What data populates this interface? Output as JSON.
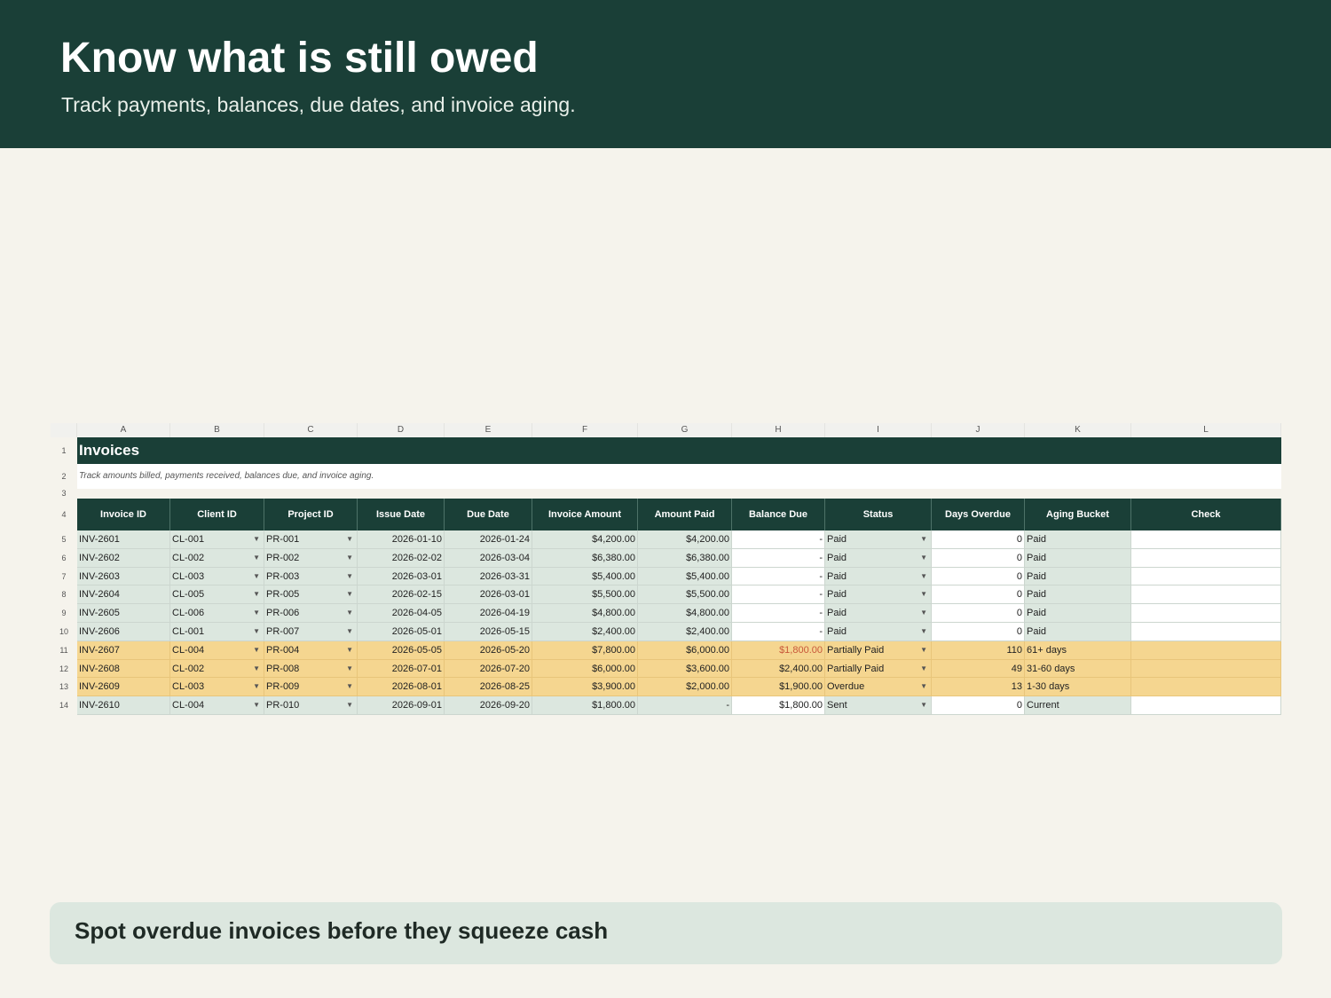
{
  "hero": {
    "title": "Know what is still owed",
    "subtitle": "Track payments, balances, due dates, and invoice aging."
  },
  "sheet": {
    "column_letters": [
      "A",
      "B",
      "C",
      "D",
      "E",
      "F",
      "G",
      "H",
      "I",
      "J",
      "K",
      "L"
    ],
    "row_numbers": [
      "1",
      "2",
      "3",
      "4",
      "5",
      "6",
      "7",
      "8",
      "9",
      "10",
      "11",
      "12",
      "13",
      "14"
    ],
    "title": "Invoices",
    "subtitle": "Track amounts billed, payments received, balances due, and invoice aging.",
    "headers": [
      "Invoice ID",
      "Client ID",
      "Project ID",
      "Issue Date",
      "Due Date",
      "Invoice Amount",
      "Amount Paid",
      "Balance Due",
      "Status",
      "Days Overdue",
      "Aging Bucket",
      "Check"
    ],
    "rows": [
      {
        "invoice": "INV-2601",
        "client": "CL-001",
        "project": "PR-001",
        "issue": "2026-01-10",
        "due": "2026-01-24",
        "amount": "$4,200.00",
        "paid": "$4,200.00",
        "balance": "-",
        "status": "Paid",
        "days": "0",
        "aging": "Paid",
        "check": "",
        "highlight": false
      },
      {
        "invoice": "INV-2602",
        "client": "CL-002",
        "project": "PR-002",
        "issue": "2026-02-02",
        "due": "2026-03-04",
        "amount": "$6,380.00",
        "paid": "$6,380.00",
        "balance": "-",
        "status": "Paid",
        "days": "0",
        "aging": "Paid",
        "check": "",
        "highlight": false
      },
      {
        "invoice": "INV-2603",
        "client": "CL-003",
        "project": "PR-003",
        "issue": "2026-03-01",
        "due": "2026-03-31",
        "amount": "$5,400.00",
        "paid": "$5,400.00",
        "balance": "-",
        "status": "Paid",
        "days": "0",
        "aging": "Paid",
        "check": "",
        "highlight": false
      },
      {
        "invoice": "INV-2604",
        "client": "CL-005",
        "project": "PR-005",
        "issue": "2026-02-15",
        "due": "2026-03-01",
        "amount": "$5,500.00",
        "paid": "$5,500.00",
        "balance": "-",
        "status": "Paid",
        "days": "0",
        "aging": "Paid",
        "check": "",
        "highlight": false
      },
      {
        "invoice": "INV-2605",
        "client": "CL-006",
        "project": "PR-006",
        "issue": "2026-04-05",
        "due": "2026-04-19",
        "amount": "$4,800.00",
        "paid": "$4,800.00",
        "balance": "-",
        "status": "Paid",
        "days": "0",
        "aging": "Paid",
        "check": "",
        "highlight": false
      },
      {
        "invoice": "INV-2606",
        "client": "CL-001",
        "project": "PR-007",
        "issue": "2026-05-01",
        "due": "2026-05-15",
        "amount": "$2,400.00",
        "paid": "$2,400.00",
        "balance": "-",
        "status": "Paid",
        "days": "0",
        "aging": "Paid",
        "check": "",
        "highlight": false
      },
      {
        "invoice": "INV-2607",
        "client": "CL-004",
        "project": "PR-004",
        "issue": "2026-05-05",
        "due": "2026-05-20",
        "amount": "$7,800.00",
        "paid": "$6,000.00",
        "balance": "$1,800.00",
        "status": "Partially Paid",
        "days": "110",
        "aging": "61+ days",
        "check": "",
        "highlight": true,
        "balance_red": true
      },
      {
        "invoice": "INV-2608",
        "client": "CL-002",
        "project": "PR-008",
        "issue": "2026-07-01",
        "due": "2026-07-20",
        "amount": "$6,000.00",
        "paid": "$3,600.00",
        "balance": "$2,400.00",
        "status": "Partially Paid",
        "days": "49",
        "aging": "31-60 days",
        "check": "",
        "highlight": true
      },
      {
        "invoice": "INV-2609",
        "client": "CL-003",
        "project": "PR-009",
        "issue": "2026-08-01",
        "due": "2026-08-25",
        "amount": "$3,900.00",
        "paid": "$2,000.00",
        "balance": "$1,900.00",
        "status": "Overdue",
        "days": "13",
        "aging": "1-30 days",
        "check": "",
        "highlight": true
      },
      {
        "invoice": "INV-2610",
        "client": "CL-004",
        "project": "PR-010",
        "issue": "2026-09-01",
        "due": "2026-09-20",
        "amount": "$1,800.00",
        "paid": "-",
        "balance": "$1,800.00",
        "status": "Sent",
        "days": "0",
        "aging": "Current",
        "check": "",
        "highlight": false
      }
    ]
  },
  "callout": {
    "text": "Spot overdue invoices before they squeeze cash"
  },
  "colors": {
    "brand": "#1a3f37",
    "background": "#f5f3ec",
    "input_cell": "#dce7df",
    "highlight": "#f5d690",
    "alert_text": "#c8583a"
  },
  "icons": {
    "dropdown": "dropdown-arrow-icon"
  }
}
